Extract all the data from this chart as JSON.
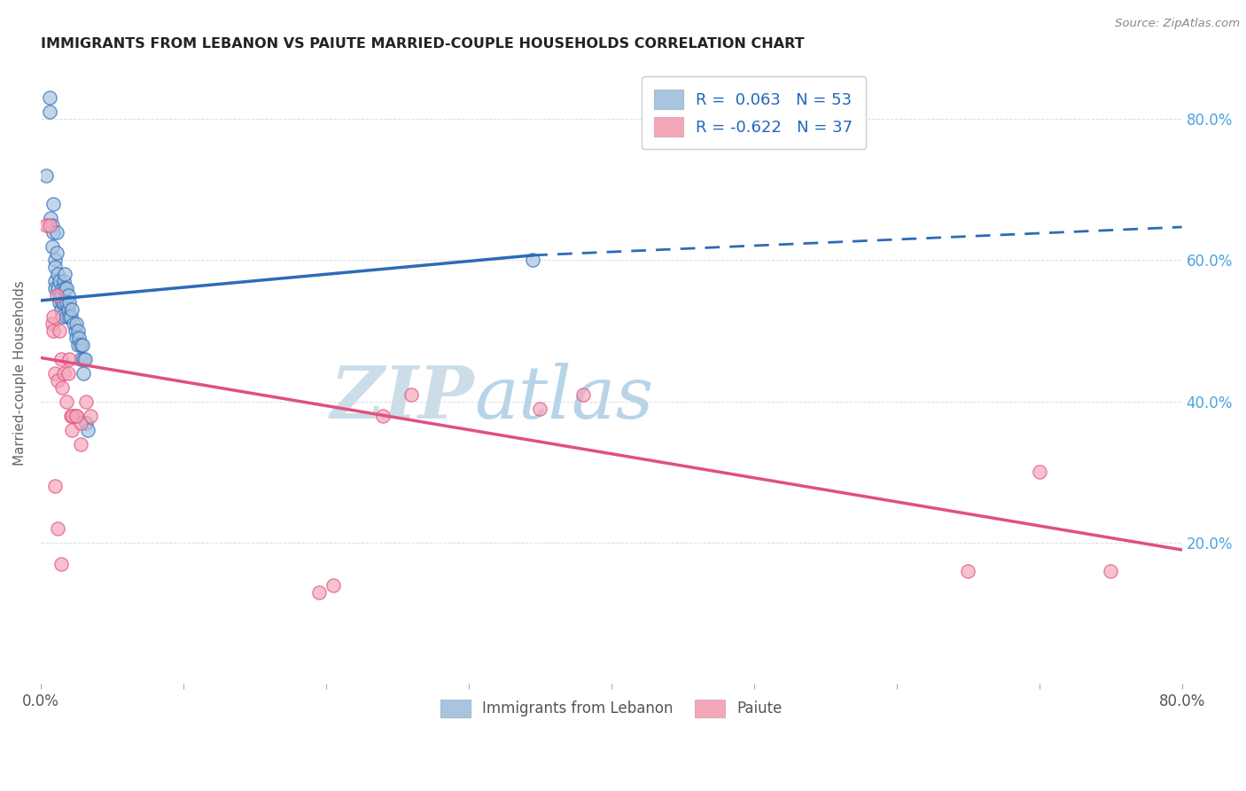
{
  "title": "IMMIGRANTS FROM LEBANON VS PAIUTE MARRIED-COUPLE HOUSEHOLDS CORRELATION CHART",
  "source": "Source: ZipAtlas.com",
  "ylabel": "Married-couple Households",
  "xlim": [
    0.0,
    0.8
  ],
  "ylim": [
    0.0,
    0.88
  ],
  "blue_color": "#a8c4e0",
  "pink_color": "#f4a7b9",
  "blue_line_color": "#2b6cb8",
  "pink_line_color": "#e05080",
  "legend_R1": "R =  0.063",
  "legend_N1": "N = 53",
  "legend_R2": "R = -0.622",
  "legend_N2": "N = 37",
  "blue_line_start_x": 0.0,
  "blue_line_start_y": 0.543,
  "blue_line_solid_end_x": 0.345,
  "blue_line_solid_end_y": 0.607,
  "blue_line_dashed_end_x": 0.8,
  "blue_line_dashed_end_y": 0.647,
  "pink_line_start_x": 0.0,
  "pink_line_start_y": 0.462,
  "pink_line_end_x": 0.8,
  "pink_line_end_y": 0.19,
  "blue_scatter_x": [
    0.004,
    0.006,
    0.006,
    0.007,
    0.008,
    0.008,
    0.009,
    0.009,
    0.01,
    0.01,
    0.01,
    0.01,
    0.011,
    0.011,
    0.012,
    0.012,
    0.013,
    0.013,
    0.013,
    0.014,
    0.014,
    0.015,
    0.015,
    0.015,
    0.016,
    0.016,
    0.017,
    0.017,
    0.018,
    0.018,
    0.018,
    0.019,
    0.019,
    0.02,
    0.02,
    0.021,
    0.022,
    0.023,
    0.024,
    0.025,
    0.025,
    0.026,
    0.026,
    0.027,
    0.028,
    0.028,
    0.029,
    0.03,
    0.03,
    0.031,
    0.032,
    0.033,
    0.345
  ],
  "blue_scatter_y": [
    0.72,
    0.81,
    0.83,
    0.66,
    0.65,
    0.62,
    0.68,
    0.64,
    0.6,
    0.59,
    0.57,
    0.56,
    0.64,
    0.61,
    0.58,
    0.56,
    0.57,
    0.55,
    0.54,
    0.55,
    0.53,
    0.56,
    0.54,
    0.52,
    0.57,
    0.54,
    0.58,
    0.56,
    0.56,
    0.54,
    0.52,
    0.55,
    0.53,
    0.54,
    0.52,
    0.52,
    0.53,
    0.51,
    0.5,
    0.51,
    0.49,
    0.5,
    0.48,
    0.49,
    0.48,
    0.46,
    0.48,
    0.46,
    0.44,
    0.46,
    0.37,
    0.36,
    0.6
  ],
  "pink_scatter_x": [
    0.004,
    0.006,
    0.008,
    0.009,
    0.009,
    0.01,
    0.011,
    0.012,
    0.013,
    0.014,
    0.015,
    0.016,
    0.018,
    0.019,
    0.02,
    0.021,
    0.022,
    0.023,
    0.025,
    0.028,
    0.032,
    0.035,
    0.01,
    0.012,
    0.014,
    0.022,
    0.025,
    0.028,
    0.195,
    0.205,
    0.24,
    0.26,
    0.35,
    0.38,
    0.65,
    0.7,
    0.75
  ],
  "pink_scatter_y": [
    0.65,
    0.65,
    0.51,
    0.5,
    0.52,
    0.44,
    0.55,
    0.43,
    0.5,
    0.46,
    0.42,
    0.44,
    0.4,
    0.44,
    0.46,
    0.38,
    0.36,
    0.38,
    0.38,
    0.37,
    0.4,
    0.38,
    0.28,
    0.22,
    0.17,
    0.38,
    0.38,
    0.34,
    0.13,
    0.14,
    0.38,
    0.41,
    0.39,
    0.41,
    0.16,
    0.3,
    0.16
  ],
  "watermark_zip": "ZIP",
  "watermark_atlas": "atlas",
  "watermark_color_zip": "#c5d8ed",
  "watermark_color_atlas": "#c5d8ed",
  "background_color": "#ffffff",
  "grid_color": "#dddddd"
}
